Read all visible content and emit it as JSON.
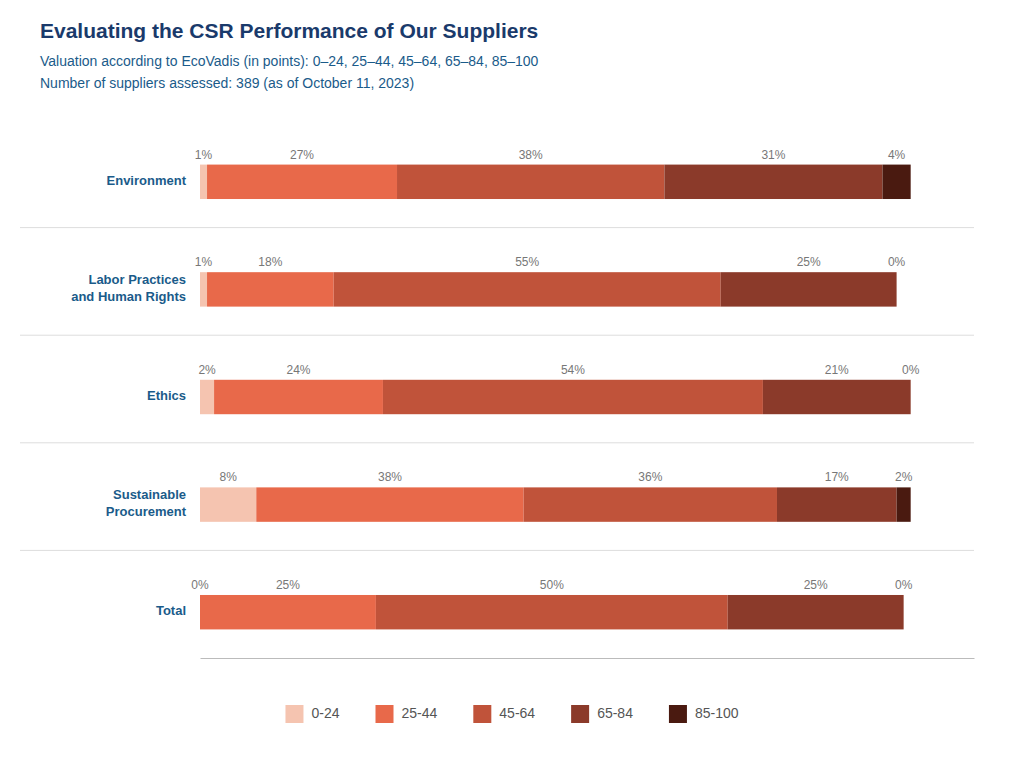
{
  "chart_data": {
    "type": "bar",
    "orientation": "horizontal",
    "stacked": true,
    "data_labels": true,
    "tick_labels": false,
    "legend": "bottom",
    "title": "Evaluating the CSR Performance of Our Suppliers",
    "subtitle": [
      "Valuation according to EcoVadis (in points): 0–24, 25–44, 45–64, 65–84, 85–100",
      "Number of suppliers assessed: 389 (as of October 11, 2023)"
    ],
    "categories": [
      "Environment",
      "Labor Practices\nand Human Rights",
      "Ethics",
      "Sustainable\nProcurement",
      "Total"
    ],
    "xlim": [
      0,
      110
    ],
    "series": [
      {
        "name": "0-24",
        "color": "#f5c4b0",
        "values": [
          1,
          1,
          2,
          8,
          0
        ],
        "value_labels": [
          "1%",
          "1%",
          "2%",
          "8%",
          "0%"
        ]
      },
      {
        "name": "25-44",
        "color": "#e8694a",
        "values": [
          27,
          18,
          24,
          38,
          25
        ],
        "value_labels": [
          "27%",
          "18%",
          "24%",
          "38%",
          "25%"
        ]
      },
      {
        "name": "45-64",
        "color": "#c0533a",
        "values": [
          38,
          55,
          54,
          36,
          50
        ],
        "value_labels": [
          "38%",
          "55%",
          "54%",
          "36%",
          "50%"
        ]
      },
      {
        "name": "65-84",
        "color": "#8b3a2a",
        "values": [
          31,
          25,
          21,
          17,
          25
        ],
        "value_labels": [
          "31%",
          "25%",
          "21%",
          "17%",
          "25%"
        ]
      },
      {
        "name": "85-100",
        "color": "#4a1a10",
        "values": [
          4,
          0,
          0,
          2,
          0
        ],
        "value_labels": [
          "4%",
          "0%",
          "0%",
          "2%",
          "0%"
        ]
      }
    ]
  }
}
